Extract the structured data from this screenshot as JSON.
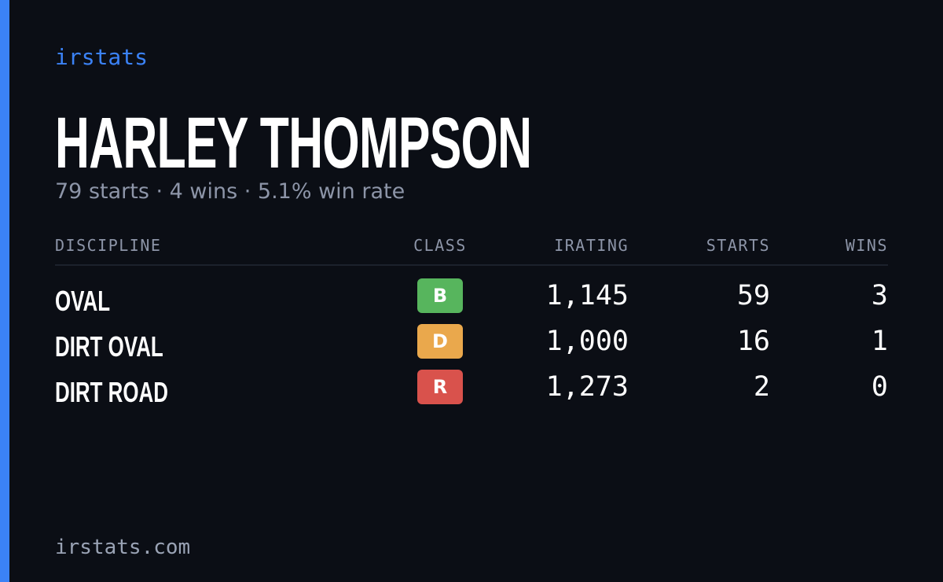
{
  "brand": "irstats",
  "driver": {
    "name": "HARLEY THOMPSON",
    "summary": "79 starts · 4 wins · 5.1% win rate"
  },
  "table": {
    "headers": [
      "DISCIPLINE",
      "CLASS",
      "IRATING",
      "STARTS",
      "WINS"
    ],
    "rows": [
      {
        "discipline": "OVAL",
        "class": "B",
        "class_color": "#57b55d",
        "irating": "1,145",
        "starts": 59,
        "wins": 3
      },
      {
        "discipline": "DIRT OVAL",
        "class": "D",
        "class_color": "#eaa84c",
        "irating": "1,000",
        "starts": 16,
        "wins": 1
      },
      {
        "discipline": "DIRT ROAD",
        "class": "R",
        "class_color": "#d9524c",
        "irating": "1,273",
        "starts": 2,
        "wins": 0
      }
    ]
  },
  "footer": "irstats.com"
}
